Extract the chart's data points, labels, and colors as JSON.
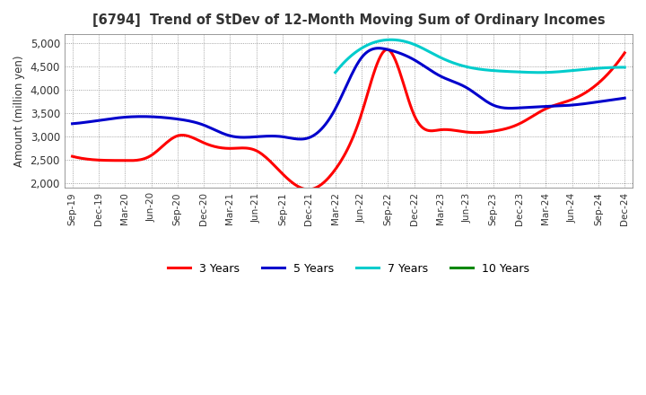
{
  "title": "[6794]  Trend of StDev of 12-Month Moving Sum of Ordinary Incomes",
  "ylabel": "Amount (million yen)",
  "ylim": [
    1900,
    5200
  ],
  "yticks": [
    2000,
    2500,
    3000,
    3500,
    4000,
    4500,
    5000
  ],
  "bg_color": "#ffffff",
  "colors": {
    "3y": "#ff0000",
    "5y": "#0000cc",
    "7y": "#00cccc",
    "10y": "#008800"
  },
  "x_labels": [
    "Sep-19",
    "Dec-19",
    "Mar-20",
    "Jun-20",
    "Sep-20",
    "Dec-20",
    "Mar-21",
    "Jun-21",
    "Sep-21",
    "Dec-21",
    "Mar-22",
    "Jun-22",
    "Sep-22",
    "Dec-22",
    "Mar-23",
    "Jun-23",
    "Sep-23",
    "Dec-23",
    "Mar-24",
    "Jun-24",
    "Sep-24",
    "Dec-24"
  ],
  "series_3y": [
    2580,
    2500,
    2490,
    2600,
    3020,
    2870,
    2750,
    2700,
    2200,
    1870,
    2300,
    3500,
    4870,
    3460,
    3150,
    3100,
    3120,
    3280,
    3600,
    3800,
    4150,
    4800
  ],
  "series_5y": [
    3280,
    3350,
    3420,
    3430,
    3380,
    3250,
    3020,
    3000,
    3000,
    2980,
    3600,
    4700,
    4870,
    4650,
    4300,
    4050,
    3680,
    3620,
    3650,
    3680,
    3750,
    3830
  ],
  "series_7y": [
    null,
    null,
    null,
    null,
    null,
    null,
    null,
    null,
    null,
    null,
    4380,
    4900,
    5080,
    4980,
    4700,
    4500,
    4420,
    4390,
    4380,
    4420,
    4470,
    4490
  ],
  "series_10y": [
    null,
    null,
    null,
    null,
    null,
    null,
    null,
    null,
    null,
    null,
    null,
    null,
    null,
    null,
    null,
    null,
    null,
    null,
    null,
    null,
    null,
    null
  ],
  "legend_labels": [
    "3 Years",
    "5 Years",
    "7 Years",
    "10 Years"
  ]
}
